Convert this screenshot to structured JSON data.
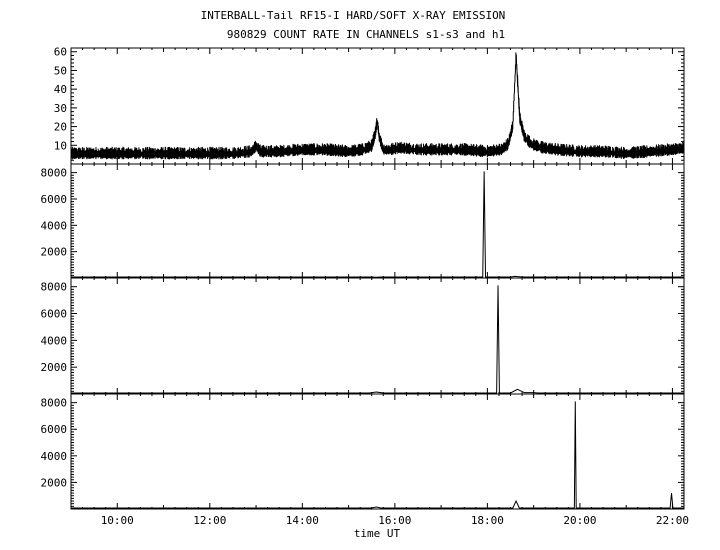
{
  "chart_data": {
    "type": "line",
    "title": "INTERBALL-Tail RF15-I HARD/SOFT X-RAY EMISSION",
    "subtitle": "980829  COUNT RATE IN CHANNELS s1-s3 and h1",
    "xlabel": "time UT",
    "xlim_hours": [
      9.0,
      22.25
    ],
    "x_ticks": [
      {
        "value": 10,
        "label": "10:00"
      },
      {
        "value": 12,
        "label": "12:00"
      },
      {
        "value": 14,
        "label": "14:00"
      },
      {
        "value": 16,
        "label": "16:00"
      },
      {
        "value": 18,
        "label": "18:00"
      },
      {
        "value": 20,
        "label": "20:00"
      },
      {
        "value": 22,
        "label": "22:00"
      }
    ],
    "panels": [
      {
        "ylim": [
          0,
          62
        ],
        "yticks": [
          10,
          20,
          30,
          40,
          50,
          60
        ],
        "ytick_labels": [
          "10",
          "20",
          "30",
          "40",
          "50",
          "60"
        ],
        "series": {
          "x": [
            9.0,
            9.5,
            10.0,
            10.5,
            11.0,
            11.5,
            12.0,
            12.5,
            12.9,
            13.0,
            13.1,
            13.5,
            14.0,
            14.5,
            15.0,
            15.3,
            15.5,
            15.58,
            15.62,
            15.66,
            15.75,
            15.9,
            16.1,
            16.5,
            17.0,
            17.5,
            18.0,
            18.3,
            18.45,
            18.55,
            18.62,
            18.65,
            18.7,
            18.8,
            18.95,
            19.2,
            19.5,
            20.0,
            20.5,
            21.0,
            21.5,
            22.0,
            22.25
          ],
          "y": [
            5,
            5,
            5,
            5,
            5,
            5,
            5,
            5,
            6,
            9,
            6,
            6,
            7,
            7,
            6,
            7,
            9,
            16,
            23,
            14,
            7,
            7,
            8,
            7,
            7,
            7,
            6,
            7,
            10,
            20,
            58,
            45,
            24,
            14,
            10,
            8,
            7,
            6,
            6,
            5,
            6,
            7,
            8
          ],
          "noise": 3
        }
      },
      {
        "ylim": [
          0,
          8200
        ],
        "yticks": [
          2000,
          4000,
          6000,
          8000
        ],
        "ytick_labels": [
          "2000",
          "4000",
          "6000",
          "8000"
        ],
        "series": {
          "x": [
            9.0,
            15.5,
            15.6,
            15.7,
            17.9,
            17.93,
            17.96,
            18.5,
            18.6,
            18.75,
            22.25
          ],
          "y": [
            0,
            0,
            60,
            0,
            0,
            8100,
            0,
            0,
            120,
            0,
            0
          ]
        }
      },
      {
        "ylim": [
          0,
          8200
        ],
        "yticks": [
          2000,
          4000,
          6000,
          8000
        ],
        "ytick_labels": [
          "2000",
          "4000",
          "6000",
          "8000"
        ],
        "series": {
          "x": [
            9.0,
            15.45,
            15.6,
            15.75,
            18.2,
            18.23,
            18.26,
            18.5,
            18.65,
            18.8,
            19.0,
            19.1,
            22.25
          ],
          "y": [
            0,
            0,
            150,
            0,
            0,
            8100,
            0,
            0,
            350,
            100,
            100,
            0,
            0
          ]
        }
      },
      {
        "ylim": [
          0,
          8200
        ],
        "yticks": [
          2000,
          4000,
          6000,
          8000
        ],
        "ytick_labels": [
          "2000",
          "4000",
          "6000",
          "8000"
        ],
        "series": {
          "x": [
            9.0,
            15.5,
            15.6,
            15.7,
            18.55,
            18.62,
            18.69,
            19.88,
            19.9,
            19.92,
            21.95,
            21.98,
            22.01,
            22.25
          ],
          "y": [
            0,
            0,
            150,
            0,
            0,
            600,
            0,
            0,
            8100,
            0,
            0,
            1200,
            0,
            0
          ]
        }
      }
    ],
    "grid": false,
    "legend": "none"
  }
}
